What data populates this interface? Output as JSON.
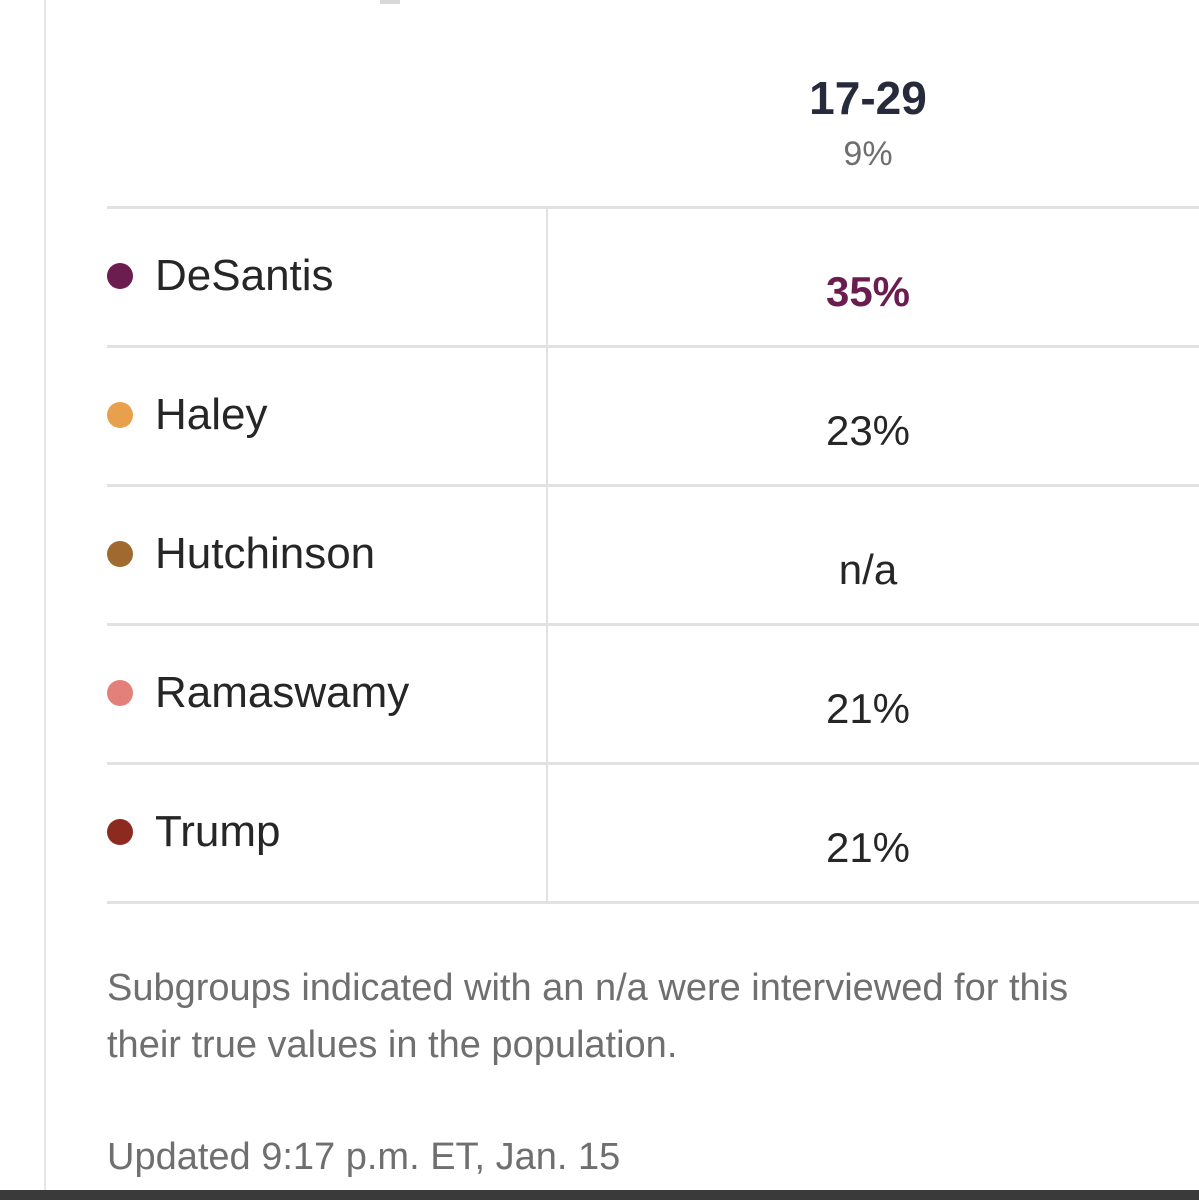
{
  "table": {
    "column_header": {
      "age_group": "17-29",
      "share": "9%"
    },
    "rows": [
      {
        "candidate": "DeSantis",
        "value": "35%",
        "dot_color": "#6b1d4f",
        "leader": true
      },
      {
        "candidate": "Haley",
        "value": "23%",
        "dot_color": "#e8a04d",
        "leader": false
      },
      {
        "candidate": "Hutchinson",
        "value": "n/a",
        "dot_color": "#a0692f",
        "leader": false
      },
      {
        "candidate": "Ramaswamy",
        "value": "21%",
        "dot_color": "#e3807a",
        "leader": false
      },
      {
        "candidate": "Trump",
        "value": "21%",
        "dot_color": "#8c2a1f",
        "leader": false
      }
    ]
  },
  "footnote": {
    "line1": "Subgroups indicated with an n/a were interviewed for this",
    "line2": "their true values in the population."
  },
  "updated": "Updated 9:17 p.m. ET, Jan. 15",
  "colors": {
    "leader_accent": "#6b1d4f",
    "text": "#262626",
    "muted_text": "#6f6f6f",
    "rule": "#e2e2e2"
  }
}
